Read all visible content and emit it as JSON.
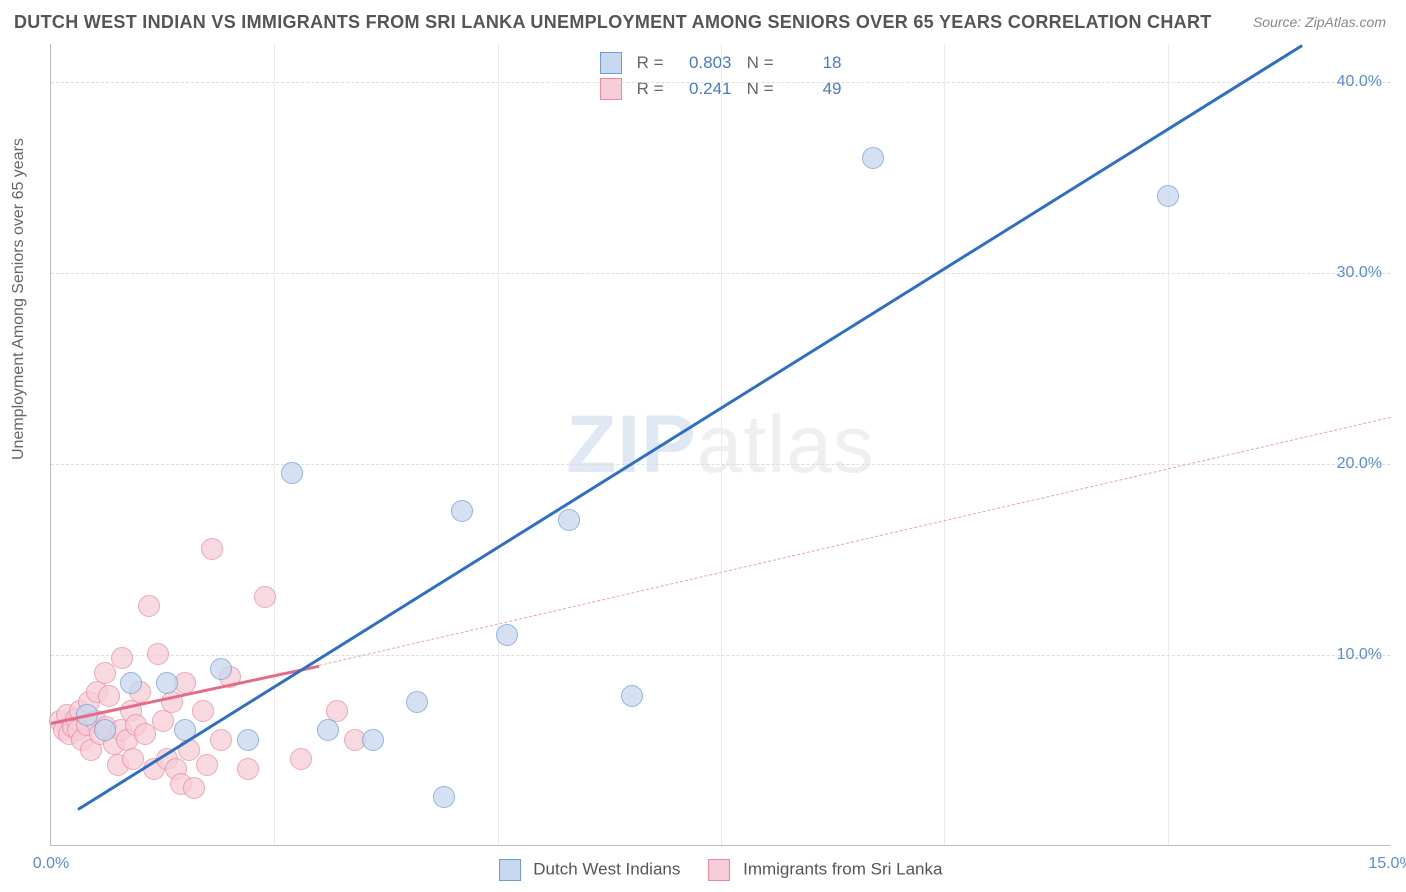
{
  "title": "DUTCH WEST INDIAN VS IMMIGRANTS FROM SRI LANKA UNEMPLOYMENT AMONG SENIORS OVER 65 YEARS CORRELATION CHART",
  "source": "Source: ZipAtlas.com",
  "ylabel": "Unemployment Among Seniors over 65 years",
  "watermark_a": "ZIP",
  "watermark_b": "atlas",
  "chart": {
    "type": "scatter",
    "background_color": "#ffffff",
    "grid_color": "#dddddd",
    "axis_color": "#bbbbbb",
    "tick_color": "#5b8bd4",
    "xlim": [
      0,
      15
    ],
    "ylim": [
      0,
      42
    ],
    "xticks": [
      {
        "v": 0,
        "label": "0.0%"
      },
      {
        "v": 15,
        "label": "15.0%"
      }
    ],
    "yticks": [
      {
        "v": 10,
        "label": "10.0%"
      },
      {
        "v": 20,
        "label": "20.0%"
      },
      {
        "v": 30,
        "label": "30.0%"
      },
      {
        "v": 40,
        "label": "40.0%"
      }
    ],
    "vgrid": [
      2.5,
      5.0,
      7.5,
      10.0,
      12.5
    ],
    "marker_size": 22,
    "series": [
      {
        "key": "blue",
        "name": "Dutch West Indians",
        "color_fill": "#c7d8ef",
        "color_stroke": "#6f9bd8",
        "R": "0.803",
        "N": "18",
        "trend": {
          "x1": 0.3,
          "y1": 2.0,
          "x2": 14.0,
          "y2": 42.0,
          "color": "#2f6fc3",
          "style": "solid"
        },
        "points": [
          {
            "x": 0.4,
            "y": 6.8
          },
          {
            "x": 0.6,
            "y": 6.0
          },
          {
            "x": 0.9,
            "y": 8.5
          },
          {
            "x": 1.3,
            "y": 8.5
          },
          {
            "x": 1.5,
            "y": 6.0
          },
          {
            "x": 1.9,
            "y": 9.2
          },
          {
            "x": 2.2,
            "y": 5.5
          },
          {
            "x": 2.7,
            "y": 19.5
          },
          {
            "x": 3.1,
            "y": 6.0
          },
          {
            "x": 3.6,
            "y": 5.5
          },
          {
            "x": 4.1,
            "y": 7.5
          },
          {
            "x": 4.4,
            "y": 2.5
          },
          {
            "x": 4.6,
            "y": 17.5
          },
          {
            "x": 5.1,
            "y": 11.0
          },
          {
            "x": 5.8,
            "y": 17.0
          },
          {
            "x": 6.5,
            "y": 7.8
          },
          {
            "x": 9.2,
            "y": 36.0
          },
          {
            "x": 12.5,
            "y": 34.0
          }
        ]
      },
      {
        "key": "pink",
        "name": "Immigrants from Sri Lanka",
        "color_fill": "#f6cdd6",
        "color_stroke": "#e88ba0",
        "R": "0.241",
        "N": "49",
        "trend_solid": {
          "x1": 0.0,
          "y1": 6.5,
          "x2": 3.0,
          "y2": 9.5,
          "color": "#e36d89",
          "style": "solid"
        },
        "trend": {
          "x1": 3.0,
          "y1": 9.5,
          "x2": 15.0,
          "y2": 22.5,
          "color": "#e9a3b2",
          "style": "dash"
        },
        "points": [
          {
            "x": 0.1,
            "y": 6.5
          },
          {
            "x": 0.15,
            "y": 6.0
          },
          {
            "x": 0.18,
            "y": 6.8
          },
          {
            "x": 0.2,
            "y": 5.8
          },
          {
            "x": 0.25,
            "y": 6.2
          },
          {
            "x": 0.28,
            "y": 6.6
          },
          {
            "x": 0.3,
            "y": 6.0
          },
          {
            "x": 0.32,
            "y": 7.0
          },
          {
            "x": 0.35,
            "y": 5.5
          },
          {
            "x": 0.4,
            "y": 6.3
          },
          {
            "x": 0.42,
            "y": 7.5
          },
          {
            "x": 0.45,
            "y": 5.0
          },
          {
            "x": 0.5,
            "y": 6.5
          },
          {
            "x": 0.52,
            "y": 8.0
          },
          {
            "x": 0.55,
            "y": 5.8
          },
          {
            "x": 0.6,
            "y": 9.0
          },
          {
            "x": 0.62,
            "y": 6.2
          },
          {
            "x": 0.65,
            "y": 7.8
          },
          {
            "x": 0.7,
            "y": 5.3
          },
          {
            "x": 0.75,
            "y": 4.2
          },
          {
            "x": 0.78,
            "y": 6.0
          },
          {
            "x": 0.8,
            "y": 9.8
          },
          {
            "x": 0.85,
            "y": 5.5
          },
          {
            "x": 0.9,
            "y": 7.0
          },
          {
            "x": 0.92,
            "y": 4.5
          },
          {
            "x": 0.95,
            "y": 6.3
          },
          {
            "x": 1.0,
            "y": 8.0
          },
          {
            "x": 1.05,
            "y": 5.8
          },
          {
            "x": 1.1,
            "y": 12.5
          },
          {
            "x": 1.15,
            "y": 4.0
          },
          {
            "x": 1.2,
            "y": 10.0
          },
          {
            "x": 1.25,
            "y": 6.5
          },
          {
            "x": 1.3,
            "y": 4.5
          },
          {
            "x": 1.35,
            "y": 7.5
          },
          {
            "x": 1.4,
            "y": 4.0
          },
          {
            "x": 1.45,
            "y": 3.2
          },
          {
            "x": 1.5,
            "y": 8.5
          },
          {
            "x": 1.55,
            "y": 5.0
          },
          {
            "x": 1.6,
            "y": 3.0
          },
          {
            "x": 1.7,
            "y": 7.0
          },
          {
            "x": 1.75,
            "y": 4.2
          },
          {
            "x": 1.8,
            "y": 15.5
          },
          {
            "x": 1.9,
            "y": 5.5
          },
          {
            "x": 2.0,
            "y": 8.8
          },
          {
            "x": 2.2,
            "y": 4.0
          },
          {
            "x": 2.4,
            "y": 13.0
          },
          {
            "x": 2.8,
            "y": 4.5
          },
          {
            "x": 3.2,
            "y": 7.0
          },
          {
            "x": 3.4,
            "y": 5.5
          }
        ]
      }
    ]
  },
  "legend_top": {
    "label_R": "R =",
    "label_N": "N ="
  },
  "legend_bottom": {}
}
